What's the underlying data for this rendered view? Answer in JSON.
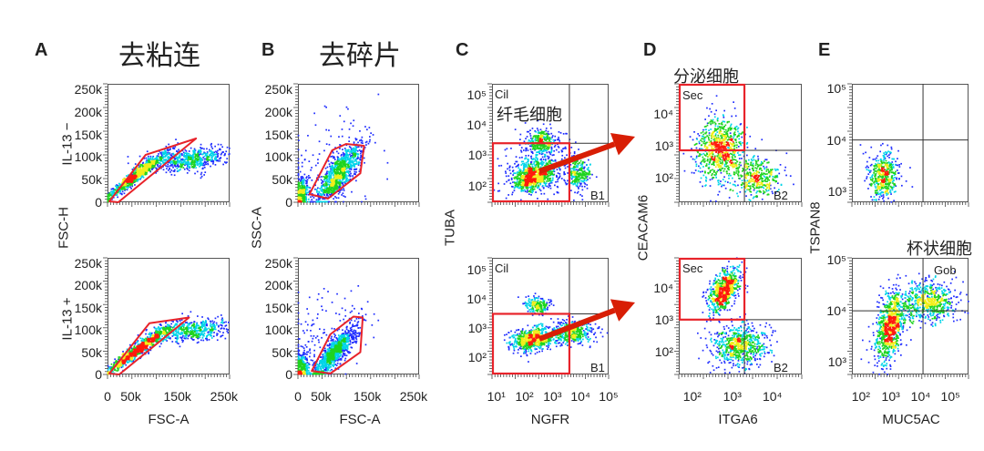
{
  "columns": [
    {
      "letter": "A",
      "title": "去粘连",
      "xlabel": "FSC-A",
      "ylabel": "FSC-H"
    },
    {
      "letter": "B",
      "title": "去碎片",
      "xlabel": "FSC-A",
      "ylabel": "SSC-A"
    },
    {
      "letter": "C",
      "title": "",
      "xlabel": "NGFR",
      "ylabel": "TUBA"
    },
    {
      "letter": "D",
      "title": "",
      "xlabel": "ITGA6",
      "ylabel": "CEACAM6"
    },
    {
      "letter": "E",
      "title": "",
      "xlabel": "MUC5AC",
      "ylabel": "TSPAN8"
    }
  ],
  "row_labels": [
    "IL-13 −",
    "IL-13 +"
  ],
  "colors": {
    "gate": "#e8232a",
    "arrow": "#d81e05",
    "density": [
      "#1f2dff",
      "#00d4e8",
      "#1fd41f",
      "#f2ee1a",
      "#ff1a0d"
    ]
  },
  "chart_data": [
    {
      "id": "A-top",
      "type": "scatter",
      "style": "density-pseudocolor",
      "x_scale": "linear",
      "y_scale": "linear",
      "xlim": [
        0,
        262000
      ],
      "ylim": [
        0,
        262000
      ],
      "yticks": [
        {
          "v": 0,
          "label": "0"
        },
        {
          "v": 50000,
          "label": "50k"
        },
        {
          "v": 100000,
          "label": "100k"
        },
        {
          "v": 150000,
          "label": "150k"
        },
        {
          "v": 200000,
          "label": "200k"
        },
        {
          "v": 250000,
          "label": "250k"
        }
      ],
      "xticks": [],
      "populations": [
        {
          "center": [
            60000,
            58000
          ],
          "spread": [
            32000,
            26000
          ],
          "corr": 0.96,
          "count": 900
        },
        {
          "center": [
            175000,
            95000
          ],
          "spread": [
            45000,
            13000
          ],
          "corr": 0.3,
          "count": 650
        }
      ],
      "gate": {
        "shape": "polygon",
        "points": [
          [
            4000,
            2000
          ],
          [
            82000,
            105000
          ],
          [
            190000,
            141000
          ],
          [
            23000,
            0
          ]
        ]
      },
      "annotations": []
    },
    {
      "id": "A-bot",
      "type": "scatter",
      "style": "density-pseudocolor",
      "x_scale": "linear",
      "y_scale": "linear",
      "xlim": [
        0,
        262000
      ],
      "ylim": [
        0,
        262000
      ],
      "yticks": [
        {
          "v": 0,
          "label": "0"
        },
        {
          "v": 50000,
          "label": "50k"
        },
        {
          "v": 100000,
          "label": "100k"
        },
        {
          "v": 150000,
          "label": "150k"
        },
        {
          "v": 200000,
          "label": "200k"
        },
        {
          "v": 250000,
          "label": "250k"
        }
      ],
      "xticks": [
        {
          "v": 0,
          "label": "0"
        },
        {
          "v": 50000,
          "label": "50k"
        },
        {
          "v": 150000,
          "label": "150k"
        },
        {
          "v": 250000,
          "label": "250k"
        }
      ],
      "populations": [
        {
          "center": [
            65000,
            55000
          ],
          "spread": [
            35000,
            27000
          ],
          "corr": 0.96,
          "count": 900
        },
        {
          "center": [
            185000,
            98000
          ],
          "spread": [
            40000,
            12000
          ],
          "corr": 0.3,
          "count": 500
        }
      ],
      "gate": {
        "shape": "polygon",
        "points": [
          [
            4000,
            2000
          ],
          [
            90000,
            115000
          ],
          [
            175000,
            128000
          ],
          [
            25000,
            0
          ]
        ]
      },
      "annotations": []
    },
    {
      "id": "B-top",
      "type": "scatter",
      "style": "density-pseudocolor",
      "x_scale": "linear",
      "y_scale": "linear",
      "xlim": [
        0,
        262000
      ],
      "ylim": [
        0,
        262000
      ],
      "yticks": [
        {
          "v": 0,
          "label": "0"
        },
        {
          "v": 50000,
          "label": "50k"
        },
        {
          "v": 100000,
          "label": "100k"
        },
        {
          "v": 150000,
          "label": "150k"
        },
        {
          "v": 200000,
          "label": "200k"
        },
        {
          "v": 250000,
          "label": "250k"
        }
      ],
      "xticks": [],
      "populations": [
        {
          "center": [
            88000,
            62000
          ],
          "spread": [
            24000,
            32000
          ],
          "corr": 0.8,
          "count": 1000
        },
        {
          "center": [
            8000,
            18000
          ],
          "spread": [
            7000,
            20000
          ],
          "corr": 0.2,
          "count": 300
        },
        {
          "center": [
            60000,
            80000
          ],
          "spread": [
            50000,
            60000
          ],
          "corr": 0.4,
          "count": 150
        }
      ],
      "gate": {
        "shape": "polygon",
        "points": [
          [
            25000,
            18000
          ],
          [
            74000,
            115000
          ],
          [
            104000,
            129000
          ],
          [
            143000,
            125000
          ],
          [
            135000,
            64000
          ],
          [
            65000,
            8000
          ]
        ]
      },
      "annotations": []
    },
    {
      "id": "B-bot",
      "type": "scatter",
      "style": "density-pseudocolor",
      "x_scale": "linear",
      "y_scale": "linear",
      "xlim": [
        0,
        262000
      ],
      "ylim": [
        0,
        262000
      ],
      "yticks": [
        {
          "v": 0,
          "label": "0"
        },
        {
          "v": 50000,
          "label": "50k"
        },
        {
          "v": 100000,
          "label": "100k"
        },
        {
          "v": 150000,
          "label": "150k"
        },
        {
          "v": 200000,
          "label": "200k"
        },
        {
          "v": 250000,
          "label": "250k"
        }
      ],
      "xticks": [
        {
          "v": 0,
          "label": "0"
        },
        {
          "v": 50000,
          "label": "50k"
        },
        {
          "v": 150000,
          "label": "150k"
        },
        {
          "v": 250000,
          "label": "250k"
        }
      ],
      "populations": [
        {
          "center": [
            80000,
            50000
          ],
          "spread": [
            24000,
            30000
          ],
          "corr": 0.85,
          "count": 1000
        },
        {
          "center": [
            8000,
            15000
          ],
          "spread": [
            7000,
            18000
          ],
          "corr": 0.2,
          "count": 300
        },
        {
          "center": [
            60000,
            80000
          ],
          "spread": [
            50000,
            60000
          ],
          "corr": 0.4,
          "count": 150
        }
      ],
      "gate": {
        "shape": "polygon",
        "points": [
          [
            30000,
            8000
          ],
          [
            70000,
            90000
          ],
          [
            120000,
            130000
          ],
          [
            140000,
            128000
          ],
          [
            135000,
            50000
          ],
          [
            70000,
            2000
          ]
        ]
      },
      "annotations": []
    },
    {
      "id": "C-top",
      "type": "scatter",
      "style": "density-pseudocolor",
      "x_scale": "log",
      "y_scale": "log",
      "xlim": [
        7,
        100000
      ],
      "ylim": [
        28,
        230000
      ],
      "yticks": [
        {
          "v": 100,
          "label": "10²"
        },
        {
          "v": 1000,
          "label": "10³"
        },
        {
          "v": 10000,
          "label": "10⁴"
        },
        {
          "v": 100000,
          "label": "10⁵"
        }
      ],
      "xticks": [],
      "populations": [
        {
          "center": [
            200,
            200
          ],
          "spread": [
            0.35,
            0.22
          ],
          "corr": 0.2,
          "count": 700
        },
        {
          "center": [
            400,
            3000
          ],
          "spread": [
            0.25,
            0.2
          ],
          "corr": 0,
          "count": 300
        },
        {
          "center": [
            9000,
            250
          ],
          "spread": [
            0.2,
            0.25
          ],
          "corr": 0,
          "count": 250
        },
        {
          "center": [
            400,
            400
          ],
          "spread": [
            0.6,
            0.5
          ],
          "corr": 0.2,
          "count": 400
        }
      ],
      "gate": {
        "shape": "rect",
        "x": [
          7,
          4000
        ],
        "y": [
          28,
          2500
        ]
      },
      "quadrant": {
        "x": 4000,
        "y": 2500
      },
      "annotations": [
        {
          "key": "cil",
          "text": "Cil"
        },
        {
          "key": "cn",
          "text": "纤毛细胞"
        },
        {
          "key": "b",
          "text": "B1"
        }
      ]
    },
    {
      "id": "C-bot",
      "type": "scatter",
      "style": "density-pseudocolor",
      "x_scale": "log",
      "y_scale": "log",
      "xlim": [
        7,
        100000
      ],
      "ylim": [
        25,
        250000
      ],
      "yticks": [
        {
          "v": 100,
          "label": "10²"
        },
        {
          "v": 1000,
          "label": "10³"
        },
        {
          "v": 10000,
          "label": "10⁴"
        },
        {
          "v": 100000,
          "label": "10⁵"
        }
      ],
      "xticks": [
        {
          "v": 10,
          "label": "10¹"
        },
        {
          "v": 100,
          "label": "10²"
        },
        {
          "v": 1000,
          "label": "10³"
        },
        {
          "v": 10000,
          "label": "10⁴"
        },
        {
          "v": 100000,
          "label": "10⁵"
        }
      ],
      "populations": [
        {
          "center": [
            200,
            400
          ],
          "spread": [
            0.4,
            0.2
          ],
          "corr": 0.2,
          "count": 700
        },
        {
          "center": [
            300,
            6000
          ],
          "spread": [
            0.22,
            0.15
          ],
          "corr": 0,
          "count": 200
        },
        {
          "center": [
            5000,
            700
          ],
          "spread": [
            0.4,
            0.2
          ],
          "corr": 0,
          "count": 400
        }
      ],
      "gate": {
        "shape": "rect",
        "x": [
          7,
          4000
        ],
        "y": [
          25,
          3000
        ]
      },
      "quadrant": {
        "x": 4000,
        "y": 3000
      },
      "annotations": [
        {
          "key": "cil",
          "text": "Cil"
        },
        {
          "key": "b",
          "text": "B1"
        }
      ]
    },
    {
      "id": "D-top",
      "type": "scatter",
      "style": "density-pseudocolor",
      "x_scale": "log",
      "y_scale": "log",
      "xlim": [
        46,
        54000
      ],
      "ylim": [
        17,
        87000
      ],
      "yticks": [
        {
          "v": 100,
          "label": "10²"
        },
        {
          "v": 1000,
          "label": "10³"
        },
        {
          "v": 10000,
          "label": "10⁴"
        }
      ],
      "xticks": [],
      "populations": [
        {
          "center": [
            500,
            800
          ],
          "spread": [
            0.3,
            0.5
          ],
          "corr": 0,
          "count": 800
        },
        {
          "center": [
            4000,
            100
          ],
          "spread": [
            0.3,
            0.3
          ],
          "corr": 0,
          "count": 400
        }
      ],
      "gate": {
        "shape": "rect",
        "x": [
          46,
          2000
        ],
        "y": [
          720,
          87000
        ]
      },
      "quadrant": {
        "x": 2000,
        "y": 720
      },
      "annotations": [
        {
          "key": "cn",
          "text": "分泌细胞"
        },
        {
          "key": "sec",
          "text": "Sec"
        },
        {
          "key": "b",
          "text": "B2"
        }
      ]
    },
    {
      "id": "D-bot",
      "type": "scatter",
      "style": "density-pseudocolor",
      "x_scale": "log",
      "y_scale": "log",
      "xlim": [
        46,
        54000
      ],
      "ylim": [
        19,
        87000
      ],
      "yticks": [
        {
          "v": 100,
          "label": "10²"
        },
        {
          "v": 1000,
          "label": "10³"
        },
        {
          "v": 10000,
          "label": "10⁴"
        }
      ],
      "xticks": [
        {
          "v": 100,
          "label": "10²"
        },
        {
          "v": 1000,
          "label": "10³"
        },
        {
          "v": 10000,
          "label": "10⁴"
        }
      ],
      "populations": [
        {
          "center": [
            600,
            8000
          ],
          "spread": [
            0.2,
            0.35
          ],
          "corr": 0.5,
          "count": 700
        },
        {
          "center": [
            1500,
            150
          ],
          "spread": [
            0.35,
            0.35
          ],
          "corr": 0,
          "count": 700
        }
      ],
      "gate": {
        "shape": "rect",
        "x": [
          46,
          2000
        ],
        "y": [
          1000,
          87000
        ]
      },
      "quadrant": {
        "x": 2000,
        "y": 1000
      },
      "annotations": [
        {
          "key": "sec",
          "text": "Sec"
        },
        {
          "key": "b",
          "text": "B2"
        }
      ]
    },
    {
      "id": "E-top",
      "type": "scatter",
      "style": "density-pseudocolor",
      "x_scale": "log",
      "y_scale": "log",
      "xlim": [
        50,
        400000
      ],
      "ylim": [
        620,
        123000
      ],
      "yticks": [
        {
          "v": 1000,
          "label": "10³"
        },
        {
          "v": 10000,
          "label": "10⁴"
        },
        {
          "v": 100000,
          "label": "10⁵"
        }
      ],
      "xticks": [],
      "populations": [
        {
          "center": [
            600,
            2000
          ],
          "spread": [
            0.25,
            0.22
          ],
          "corr": 0,
          "count": 500
        }
      ],
      "quadrant": {
        "x": 12000,
        "y": 10000
      },
      "annotations": []
    },
    {
      "id": "E-bot",
      "type": "scatter",
      "style": "density-pseudocolor",
      "x_scale": "log",
      "y_scale": "log",
      "xlim": [
        50,
        400000
      ],
      "ylim": [
        560,
        110000
      ],
      "yticks": [
        {
          "v": 1000,
          "label": "10³"
        },
        {
          "v": 10000,
          "label": "10⁴"
        },
        {
          "v": 100000,
          "label": "10⁵"
        }
      ],
      "xticks": [
        {
          "v": 100,
          "label": "10²"
        },
        {
          "v": 1000,
          "label": "10³"
        },
        {
          "v": 10000,
          "label": "10⁴"
        },
        {
          "v": 100000,
          "label": "10⁵"
        }
      ],
      "populations": [
        {
          "center": [
            1000,
            5000
          ],
          "spread": [
            0.25,
            0.35
          ],
          "corr": 0.4,
          "count": 900
        },
        {
          "center": [
            20000,
            15000
          ],
          "spread": [
            0.45,
            0.2
          ],
          "corr": 0,
          "count": 600
        }
      ],
      "quadrant": {
        "x": 12000,
        "y": 10000
      },
      "annotations": [
        {
          "key": "cn",
          "text": "杯状细胞"
        },
        {
          "key": "gob",
          "text": "Gob"
        }
      ]
    }
  ]
}
